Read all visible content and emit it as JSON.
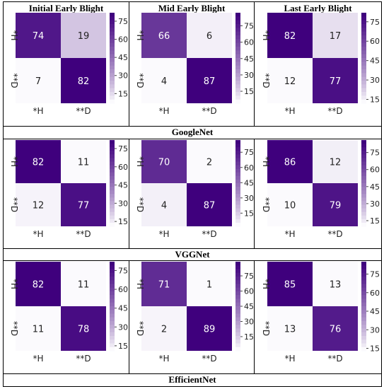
{
  "column_headers": [
    "Initial Early Blight",
    "Mid Early Blight",
    "Last Early Blight"
  ],
  "row_labels": [
    "GoogleNet",
    "VGGNet",
    "EfficientNet"
  ],
  "colorbar_ticks": [
    "75",
    "60",
    "45",
    "30",
    "15"
  ],
  "palette": {
    "low": "#fbfafd",
    "high": "#3f007d"
  },
  "chart_data": [
    {
      "type": "heatmap",
      "model": "GoogleNet",
      "stage": "Initial Early Blight",
      "x_ticks": [
        "*H",
        "**D"
      ],
      "y_ticks": [
        "*H",
        "**D"
      ],
      "values": [
        [
          74,
          19
        ],
        [
          7,
          82
        ]
      ],
      "colorbar_range": [
        7,
        82
      ]
    },
    {
      "type": "heatmap",
      "model": "GoogleNet",
      "stage": "Mid Early Blight",
      "x_ticks": [
        "*H",
        "**D"
      ],
      "y_ticks": [
        "*H",
        "**D"
      ],
      "values": [
        [
          66,
          6
        ],
        [
          4,
          87
        ]
      ],
      "colorbar_range": [
        4,
        87
      ]
    },
    {
      "type": "heatmap",
      "model": "GoogleNet",
      "stage": "Last Early Blight",
      "x_ticks": [
        "*H",
        "**D"
      ],
      "y_ticks": [
        "*H",
        "**D"
      ],
      "values": [
        [
          82,
          17
        ],
        [
          12,
          77
        ]
      ],
      "colorbar_range": [
        12,
        82
      ]
    },
    {
      "type": "heatmap",
      "model": "VGGNet",
      "stage": "Initial Early Blight",
      "x_ticks": [
        "*H",
        "**D"
      ],
      "y_ticks": [
        "*H",
        "**D"
      ],
      "values": [
        [
          82,
          11
        ],
        [
          12,
          77
        ]
      ],
      "colorbar_range": [
        11,
        82
      ]
    },
    {
      "type": "heatmap",
      "model": "VGGNet",
      "stage": "Mid Early Blight",
      "x_ticks": [
        "*H",
        "**D"
      ],
      "y_ticks": [
        "*H",
        "**D"
      ],
      "values": [
        [
          70,
          2
        ],
        [
          4,
          87
        ]
      ],
      "colorbar_range": [
        2,
        87
      ]
    },
    {
      "type": "heatmap",
      "model": "VGGNet",
      "stage": "Last Early Blight",
      "x_ticks": [
        "*H",
        "**D"
      ],
      "y_ticks": [
        "*H",
        "**D"
      ],
      "values": [
        [
          86,
          12
        ],
        [
          10,
          79
        ]
      ],
      "colorbar_range": [
        10,
        86
      ]
    },
    {
      "type": "heatmap",
      "model": "EfficientNet",
      "stage": "Initial Early Blight",
      "x_ticks": [
        "*H",
        "**D"
      ],
      "y_ticks": [
        "*H",
        "**D"
      ],
      "values": [
        [
          82,
          11
        ],
        [
          11,
          78
        ]
      ],
      "colorbar_range": [
        11,
        82
      ]
    },
    {
      "type": "heatmap",
      "model": "EfficientNet",
      "stage": "Mid Early Blight",
      "x_ticks": [
        "*H",
        "**D"
      ],
      "y_ticks": [
        "*H",
        "**D"
      ],
      "values": [
        [
          71,
          1
        ],
        [
          2,
          89
        ]
      ],
      "colorbar_range": [
        1,
        89
      ]
    },
    {
      "type": "heatmap",
      "model": "EfficientNet",
      "stage": "Last Early Blight",
      "x_ticks": [
        "*H",
        "**D"
      ],
      "y_ticks": [
        "*H",
        "**D"
      ],
      "values": [
        [
          85,
          13
        ],
        [
          13,
          76
        ]
      ],
      "colorbar_range": [
        13,
        85
      ]
    }
  ]
}
